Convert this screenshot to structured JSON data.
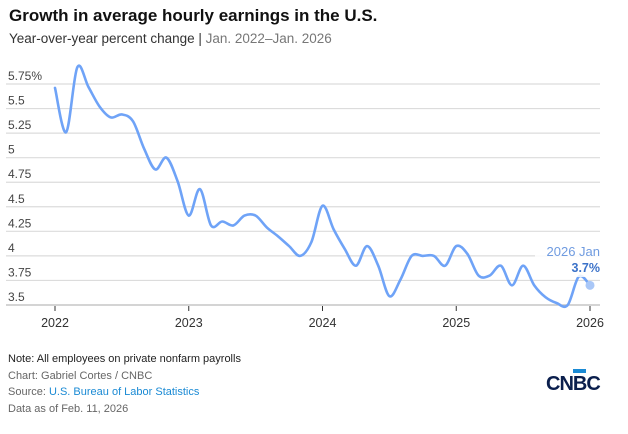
{
  "title": "Growth in average hourly earnings in the U.S.",
  "subtitle": "Year-over-year percent change",
  "subtitle_range": "Jan. 2022–Jan. 2026",
  "chart_data": {
    "type": "line",
    "title": "Growth in average hourly earnings in the U.S.",
    "xlabel": "",
    "ylabel": "",
    "x_ticks": [
      "2022",
      "2023",
      "2024",
      "2025",
      "2026"
    ],
    "y_ticks": [
      "5.75%",
      "5.5",
      "5.25",
      "5",
      "4.75",
      "4.5",
      "4.25",
      "4",
      "3.75",
      "3.5"
    ],
    "ylim": [
      3.5,
      5.75
    ],
    "grid": true,
    "line_color": "#6fa3f7",
    "x_start": "2022-01",
    "x_end": "2026-01",
    "series": [
      {
        "values": [
          5.71,
          5.26,
          5.92,
          5.72,
          5.52,
          5.41,
          5.44,
          5.37,
          5.09,
          4.88,
          5.0,
          4.76,
          4.41,
          4.68,
          4.31,
          4.35,
          4.31,
          4.41,
          4.41,
          4.29,
          4.2,
          4.1,
          4.0,
          4.14,
          4.51,
          4.27,
          4.07,
          3.9,
          4.1,
          3.9,
          3.59,
          3.76,
          4.0,
          4.0,
          4.0,
          3.9,
          4.1,
          4.02,
          3.8,
          3.8,
          3.9,
          3.7,
          3.9,
          3.7,
          3.58,
          3.52,
          3.5,
          3.79,
          3.7
        ]
      }
    ],
    "annotation": {
      "label": "2026 Jan",
      "value": "3.7%"
    }
  },
  "footer": {
    "note": "Note: All employees on private nonfarm payrolls",
    "credit": "Chart: Gabriel Cortes / CNBC",
    "source_label": "Source: ",
    "source_link": "U.S. Bureau of Labor Statistics",
    "data_as_of": "Data as of Feb. 11, 2026"
  },
  "logo": "CNBC"
}
